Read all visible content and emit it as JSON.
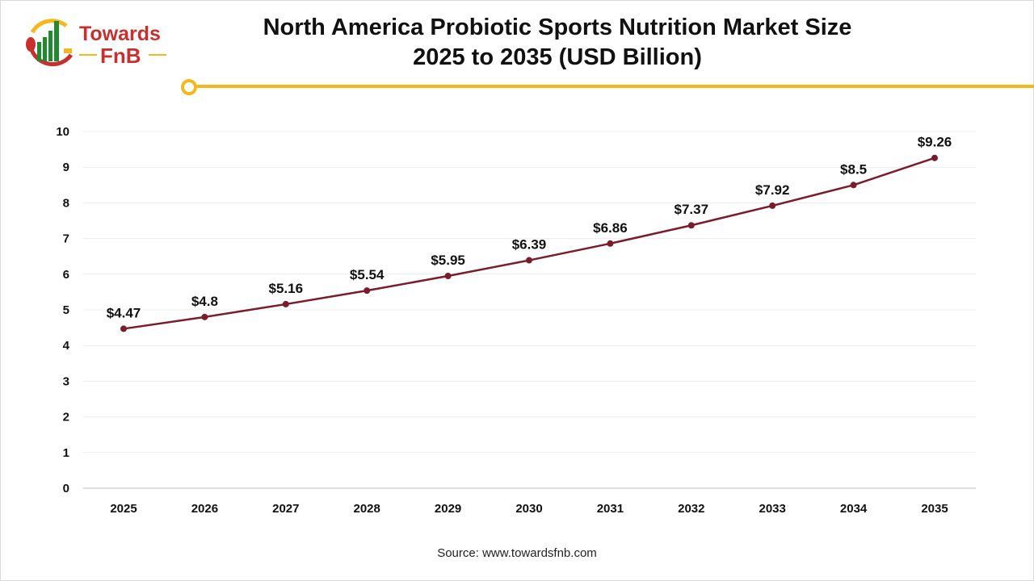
{
  "logo": {
    "line1": "Towards",
    "line2": "FnB"
  },
  "header": {
    "title_line1": "North America Probiotic Sports Nutrition Market Size",
    "title_line2": "2025 to 2035 (USD Billion)"
  },
  "footer": {
    "source": "Source: www.towardsfnb.com"
  },
  "colors": {
    "line": "#7b1c2a",
    "accent": "#f2b81c",
    "logo_red": "#c8302f",
    "logo_green": "#1f8a2e"
  },
  "chart_data": {
    "type": "line",
    "title": "North America Probiotic Sports Nutrition Market Size 2025 to 2035 (USD Billion)",
    "categories": [
      "2025",
      "2026",
      "2027",
      "2028",
      "2029",
      "2030",
      "2031",
      "2032",
      "2033",
      "2034",
      "2035"
    ],
    "values": [
      4.47,
      4.8,
      5.16,
      5.54,
      5.95,
      6.39,
      6.86,
      7.37,
      7.92,
      8.5,
      9.26
    ],
    "data_labels": [
      "$4.47",
      "$4.8",
      "$5.16",
      "$5.54",
      "$5.95",
      "$6.39",
      "$6.86",
      "$7.37",
      "$7.92",
      "$8.5",
      "$9.26"
    ],
    "yticks": [
      "0",
      "1",
      "2",
      "3",
      "4",
      "5",
      "6",
      "7",
      "8",
      "9",
      "10"
    ],
    "ylim": [
      0,
      10
    ],
    "grid": true,
    "legend": "none"
  }
}
